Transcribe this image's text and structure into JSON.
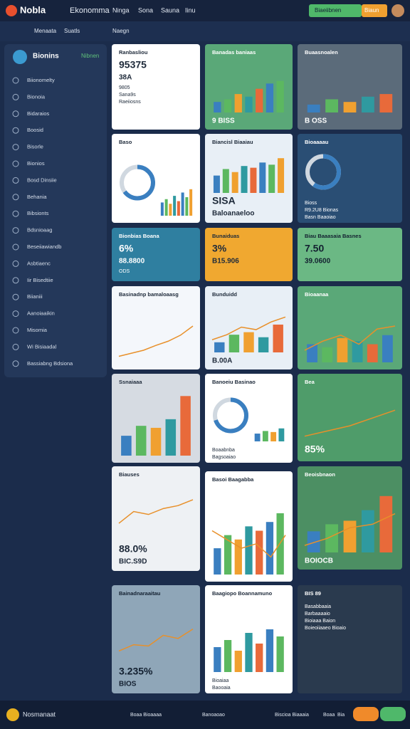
{
  "header": {
    "brand": "Nobla",
    "nav": [
      "Ekonomma",
      "Ninga",
      "Sona",
      "Sauna",
      "Iinu"
    ],
    "button": "Biaeiibnen",
    "button2": "Biaun"
  },
  "subbar": {
    "items": [
      "Menaata",
      "Suatls",
      "Naegn"
    ]
  },
  "sidebar": {
    "name": "Bionins",
    "status": "Nibnen",
    "items": [
      "Biionomelty",
      "Bionoia",
      "Bidaraios",
      "Boosid",
      "Bisorle",
      "Bionios",
      "Bosd Dinsiie",
      "Behania",
      "Bibsionts",
      "Bdsnioaag",
      "Beseiiawiandb",
      "Asbtiaenc",
      "Iir Bisedtiie",
      "Biianiii",
      "Aanoiaaikin",
      "Misomia",
      "Wi Bisiaadal",
      "Bassiabng Bdsiona"
    ]
  },
  "cards": [
    {
      "title": "Ranbasliou",
      "value": "95375",
      "value2": "38A",
      "sub": [
        "9805",
        "Sana9s",
        "Raeiiosns"
      ]
    },
    {
      "title": "Baso",
      "donut": 65,
      "bars": [
        20,
        25,
        18,
        30,
        22,
        35,
        28,
        40
      ]
    },
    {
      "title": "Bionbias Boana",
      "value": "6%",
      "value2": "88.8800",
      "sub": [
        "ODS"
      ]
    },
    {
      "title": "Basinadnp bamaloaasg",
      "line": [
        10,
        15,
        20,
        28,
        35,
        45,
        60
      ]
    },
    {
      "title": "Ssnaiaaa",
      "bars": [
        30,
        45,
        42,
        55,
        90
      ]
    },
    {
      "title": "Biauses",
      "line": [
        30,
        50,
        45,
        55,
        60,
        70
      ],
      "value": "88.0%",
      "value2": "BIC.S9D"
    },
    {
      "title": "Bainadnaraaitau",
      "line": [
        20,
        30,
        28,
        45,
        40,
        55
      ],
      "value": "3.235%",
      "value2": "BIOS"
    },
    {
      "title": "Banadas baniaas",
      "bars": [
        20,
        25,
        35,
        30,
        45,
        55,
        60
      ],
      "value2": "9 BISS"
    },
    {
      "title": "Biancisl Biaaiau",
      "bars": [
        40,
        55,
        48,
        62,
        58,
        70,
        65,
        80
      ],
      "value": "SISA",
      "value2": "Baloanaeloo"
    },
    {
      "title": "Bunaiduas",
      "value": "3%",
      "value2": "B15.906"
    },
    {
      "title": "Bunduidd",
      "bars": [
        20,
        35,
        40,
        30,
        55
      ],
      "line": [
        25,
        35,
        50,
        45,
        60,
        70
      ],
      "value2": "B.00A"
    },
    {
      "title": "Banoeiu Basinao",
      "donut": 70,
      "bars": [
        15,
        20,
        18,
        25
      ],
      "sub": [
        "Boaabnba",
        "Bagsoaiao"
      ]
    },
    {
      "title": "Basoi Baagabba",
      "bars": [
        30,
        45,
        40,
        55,
        50,
        60,
        70
      ],
      "line": [
        50,
        40,
        30,
        35,
        20,
        45
      ]
    },
    {
      "title": "Baagiopo Boannamuno",
      "bars": [
        35,
        45,
        30,
        55,
        40,
        60,
        50
      ],
      "sub": [
        "Bioaiaa",
        "Baooaia"
      ]
    },
    {
      "title": "Buaasnoalen",
      "bars": [
        15,
        25,
        20,
        30,
        35
      ],
      "value2": "B OSS"
    },
    {
      "title": "Bioaaaau",
      "donut": 60,
      "sub": [
        "Bioss",
        "R9.2U8 Bionas",
        "Basn Baaoiao"
      ]
    },
    {
      "title": "Biau Baaasaia Basnes",
      "value": "7.50",
      "value2": "39.0600"
    },
    {
      "title": "Bioaanaa",
      "bars": [
        30,
        25,
        40,
        35,
        30,
        45
      ],
      "line": [
        20,
        35,
        45,
        30,
        55,
        60
      ]
    },
    {
      "title": "Bea",
      "line": [
        10,
        20,
        30,
        45,
        60
      ],
      "value": "85%"
    },
    {
      "title": "Beoisbnaon",
      "bars": [
        30,
        40,
        45,
        60,
        80
      ],
      "line": [
        10,
        20,
        35,
        40,
        55
      ],
      "value2": "BOIOCB"
    },
    {
      "title": "BIS 89",
      "sub": [
        "Basabbaaia",
        "Barbaaaaio",
        "Bioiaaa Baion",
        "Boieoiiaaeo Bioaio"
      ]
    }
  ],
  "footer": {
    "items": [
      "Nosmanaat",
      "Boaa Bioaaaa",
      "Banoaoao",
      "Biscioa Biaaaia",
      "Boaa",
      "Bia"
    ]
  }
}
